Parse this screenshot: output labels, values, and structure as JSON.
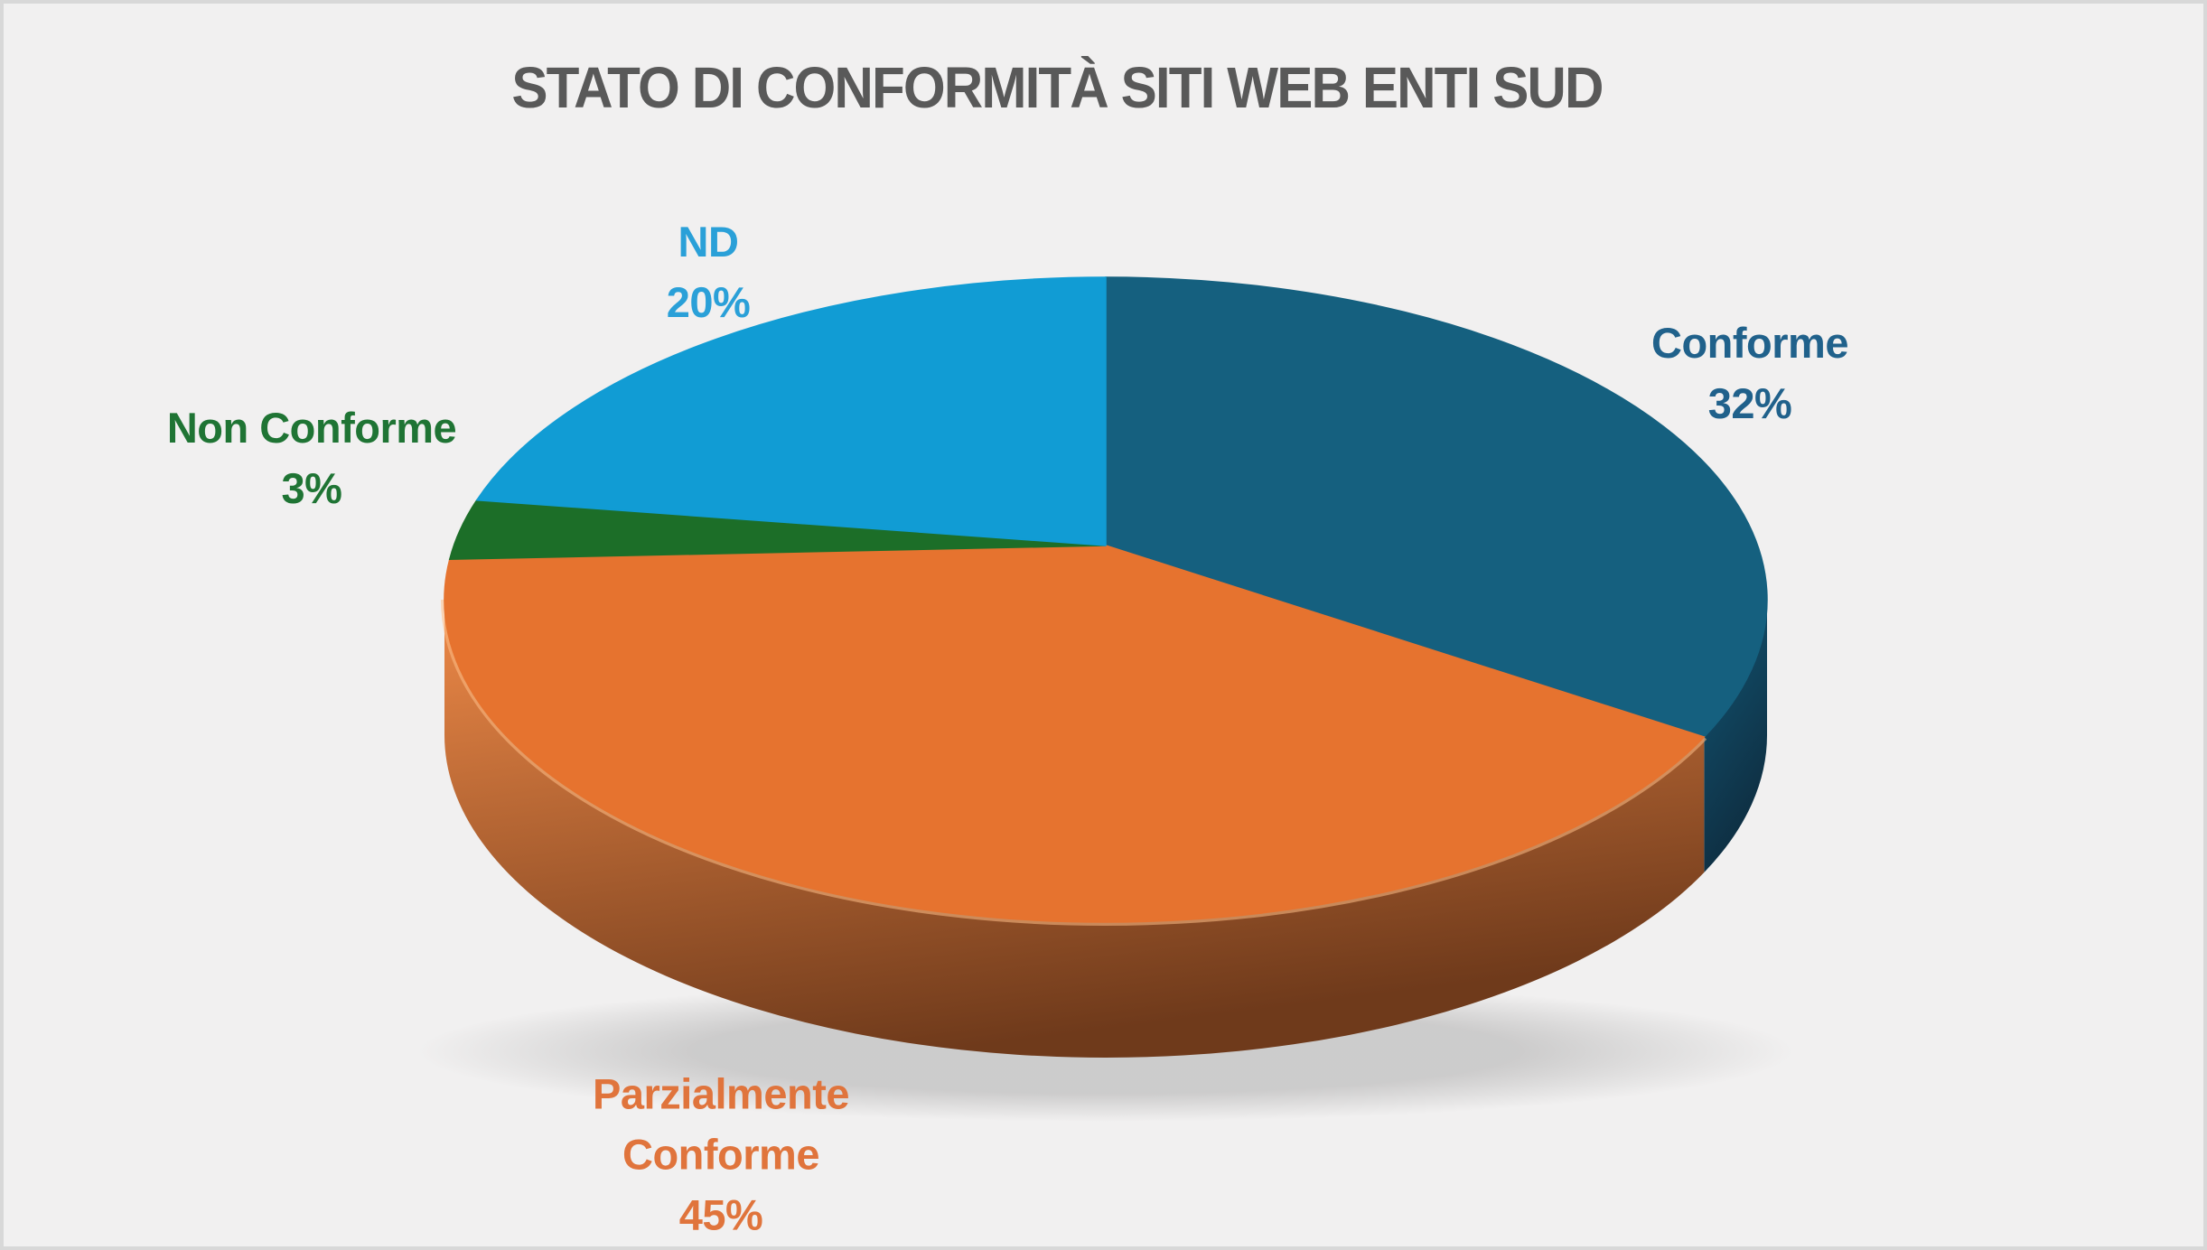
{
  "page": {
    "background_color": "#F1F0F0",
    "border_color": "#D8D8D8"
  },
  "title": {
    "text": "STATO DI CONFORMITÀ SITI WEB ENTI SUD",
    "color": "#595959"
  },
  "chart_data": {
    "type": "pie",
    "style": "3d",
    "title": "STATO DI CONFORMITÀ SITI WEB ENTI SUD",
    "start_angle_deg": 0,
    "direction": "clockwise",
    "legend_position": "none",
    "label_position": "outside",
    "categories": [
      "Conforme",
      "Parzialmente Conforme",
      "Non Conforme",
      "ND"
    ],
    "values": [
      32,
      45,
      3,
      20
    ],
    "slices": [
      {
        "name": "Conforme",
        "value": 32,
        "pct_label": "32%",
        "color": "#15607F",
        "side_color_top": "#135674",
        "side_color_bottom": "#0E2D40",
        "label_color": "#20618B",
        "label_lines": [
          "Conforme",
          "32%"
        ]
      },
      {
        "name": "Parzialmente Conforme",
        "value": 45,
        "pct_label": "45%",
        "color": "#E6732F",
        "side_color_top": "#EF8A48",
        "side_color_bottom": "#6F3A1B",
        "label_color": "#E0743C",
        "label_lines": [
          "Parzialmente",
          "Conforme",
          "45%"
        ]
      },
      {
        "name": "Non Conforme",
        "value": 3,
        "pct_label": "3%",
        "color": "#1C6E28",
        "side_color_top": "#185F23",
        "side_color_bottom": "#0E3A15",
        "label_color": "#1F7434",
        "label_lines": [
          "Non Conforme",
          "3%"
        ]
      },
      {
        "name": "ND",
        "value": 20,
        "pct_label": "20%",
        "color": "#119CD4",
        "side_color_top": "#0F8CBF",
        "side_color_bottom": "#0A5B7D",
        "label_color": "#2AA0D8",
        "label_lines": [
          "ND",
          "20%"
        ]
      }
    ]
  }
}
